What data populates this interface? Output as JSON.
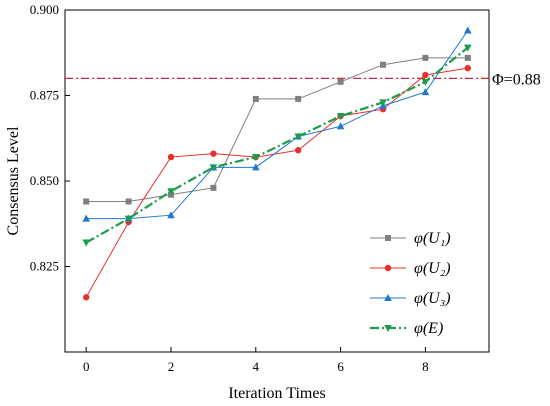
{
  "chart_data": {
    "type": "line",
    "xlabel": "Iteration Times",
    "ylabel": "Consensus Level",
    "xlim": [
      -0.5,
      9.5
    ],
    "ylim": [
      0.8,
      0.9
    ],
    "x_ticks": [
      "0",
      "2",
      "4",
      "6",
      "8"
    ],
    "y_ticks": [
      "0.825",
      "0.850",
      "0.875",
      "0.900"
    ],
    "x": [
      0,
      1,
      2,
      3,
      4,
      5,
      6,
      7,
      8,
      9
    ],
    "grid": false,
    "legend_position": "right",
    "reference_line": {
      "label": "Φ=0.88",
      "value": 0.88,
      "color": "#d62728",
      "style": "dash-dot"
    },
    "series": [
      {
        "name": "φ(U₁)",
        "sub": "1",
        "color": "#7f7f7f",
        "marker": "square",
        "style": "solid",
        "values": [
          0.844,
          0.844,
          0.846,
          0.848,
          0.874,
          0.874,
          0.879,
          0.884,
          0.886,
          0.886
        ]
      },
      {
        "name": "φ(U₂)",
        "sub": "2",
        "color": "#e8312f",
        "marker": "circle",
        "style": "solid",
        "values": [
          0.816,
          0.838,
          0.857,
          0.858,
          0.857,
          0.859,
          0.869,
          0.871,
          0.881,
          0.883
        ]
      },
      {
        "name": "φ(U₃)",
        "sub": "3",
        "color": "#1f77d4",
        "marker": "triangle-up",
        "style": "solid",
        "values": [
          0.839,
          0.839,
          0.84,
          0.854,
          0.854,
          0.863,
          0.866,
          0.872,
          0.876,
          0.894
        ]
      },
      {
        "name": "φ(E)",
        "sub": "",
        "color": "#1a9e4a",
        "marker": "triangle-down",
        "style": "dash-dot",
        "values": [
          0.832,
          0.839,
          0.847,
          0.854,
          0.857,
          0.863,
          0.869,
          0.873,
          0.879,
          0.889
        ]
      }
    ]
  }
}
